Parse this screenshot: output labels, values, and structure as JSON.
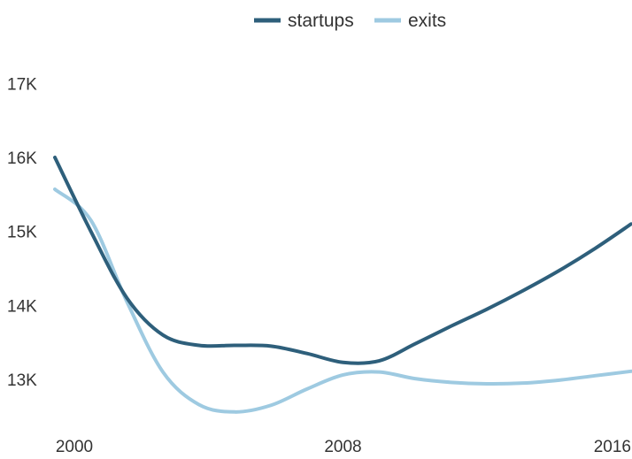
{
  "chart_data": {
    "type": "line",
    "title": "",
    "xlabel": "",
    "ylabel": "",
    "x": [
      2000,
      2001,
      2002,
      2003,
      2004,
      2005,
      2006,
      2007,
      2008,
      2009,
      2010,
      2011,
      2012,
      2013,
      2014,
      2015,
      2016
    ],
    "x_ticks": [
      2000,
      2008,
      2016
    ],
    "x_tick_labels": [
      "2000",
      "2008",
      "2016"
    ],
    "y_ticks": [
      13000,
      14000,
      15000,
      16000,
      17000
    ],
    "y_tick_labels": [
      "13K",
      "14K",
      "15K",
      "16K",
      "17K"
    ],
    "xlim": [
      2000,
      2016
    ],
    "ylim": [
      12500,
      17500
    ],
    "grid": false,
    "legend_position": "top-center",
    "series": [
      {
        "name": "startups",
        "color": "#2e5f7b",
        "values": [
          16000,
          15000,
          14100,
          13600,
          13460,
          13460,
          13450,
          13350,
          13230,
          13250,
          13480,
          13720,
          13950,
          14200,
          14470,
          14770,
          15100
        ]
      },
      {
        "name": "exits",
        "color": "#9ecae1",
        "values": [
          15570,
          15150,
          14050,
          13100,
          12660,
          12560,
          12650,
          12870,
          13060,
          13100,
          13010,
          12960,
          12940,
          12950,
          12990,
          13050,
          13110
        ]
      }
    ]
  }
}
